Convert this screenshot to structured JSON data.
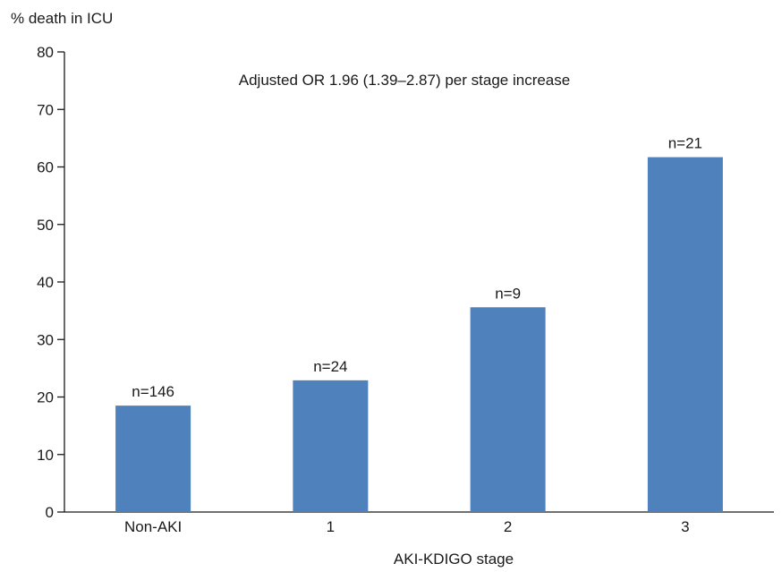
{
  "chart_data": {
    "type": "bar",
    "title": "",
    "ylabel": "% death in ICU",
    "xlabel": "AKI-KDIGO stage",
    "categories": [
      "Non-AKI",
      "1",
      "2",
      "3"
    ],
    "values": [
      18.5,
      22.9,
      35.6,
      61.7
    ],
    "data_labels": [
      "n=146",
      "n=24",
      "n=9",
      "n=21"
    ],
    "ylim": [
      0,
      80
    ],
    "yticks": [
      0,
      10,
      20,
      30,
      40,
      50,
      60,
      70,
      80
    ],
    "ytick_labels": [
      "0",
      "10",
      "20",
      "30",
      "40",
      "50",
      "60",
      "70",
      "80"
    ],
    "annotation": "Adjusted OR 1.96 (1.39–2.87) per stage increase",
    "grid": false,
    "legend": "none",
    "bar_color": "#4f81bd"
  }
}
